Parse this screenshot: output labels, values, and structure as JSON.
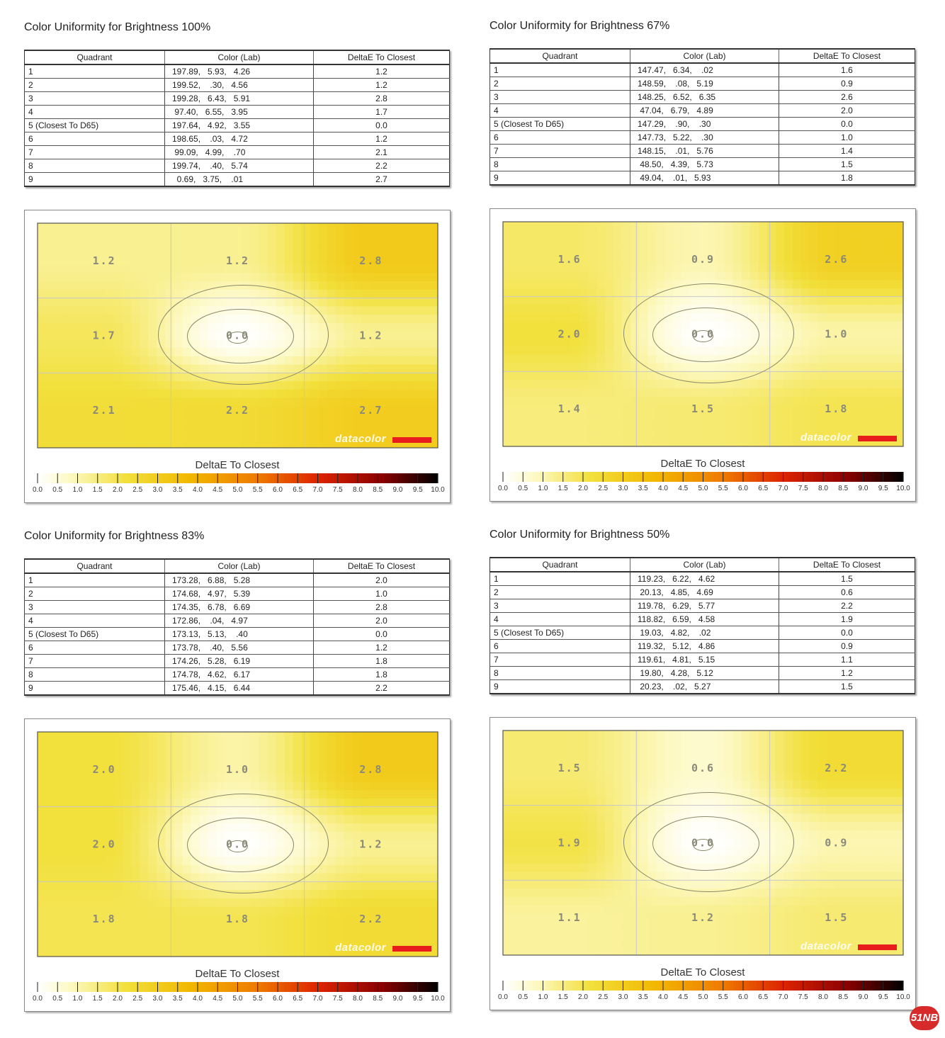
{
  "chart_data": [
    {
      "type": "table",
      "title": "Color Uniformity for Brightness 100%",
      "columns": [
        "Quadrant",
        "Color (Lab)",
        "DeltaE To Closest"
      ],
      "rows": [
        [
          "1",
          "197.89,   5.93,   4.26",
          "1.2"
        ],
        [
          "2",
          "199.52,    .30,   4.56",
          "1.2"
        ],
        [
          "3",
          "199.28,   6.43,   5.91",
          "2.8"
        ],
        [
          "4",
          " 97.40,   6.55,   3.95",
          "1.7"
        ],
        [
          "5 (Closest To D65)",
          "197.64,   4.92,   3.55",
          "0.0"
        ],
        [
          "6",
          "198.65,    .03,   4.72",
          "1.2"
        ],
        [
          "7",
          " 99.09,   4.99,    .70",
          "2.1"
        ],
        [
          "8",
          "199.74,    .40,   5.74",
          "2.2"
        ],
        [
          "9",
          "  0.69,   3.75,    .01",
          "2.7"
        ]
      ],
      "grid_values": [
        1.2,
        1.2,
        2.8,
        1.7,
        0.0,
        1.2,
        2.1,
        2.2,
        2.7
      ],
      "grid_labels": [
        "1.2",
        "1.2",
        "2.8",
        "1.7",
        "0.0",
        "1.2",
        "2.1",
        "2.2",
        "2.7"
      ],
      "heatmap_label": "DeltaE To Closest",
      "scale_ticks": [
        "0.0",
        "0.5",
        "1.0",
        "1.5",
        "2.0",
        "2.5",
        "3.0",
        "3.5",
        "4.0",
        "4.5",
        "5.0",
        "5.5",
        "6.0",
        "6.5",
        "7.0",
        "7.5",
        "8.0",
        "8.5",
        "9.0",
        "9.5",
        "10.0"
      ],
      "scale_range": [
        0,
        10
      ],
      "logo_text": "datacolor"
    },
    {
      "type": "table",
      "title": "Color Uniformity for Brightness 67%",
      "columns": [
        "Quadrant",
        "Color (Lab)",
        "DeltaE To Closest"
      ],
      "rows": [
        [
          "1",
          "147.47,   6.34,    .02",
          "1.6"
        ],
        [
          "2",
          "148.59,    .08,   5.19",
          "0.9"
        ],
        [
          "3",
          "148.25,   6.52,   6.35",
          "2.6"
        ],
        [
          "4",
          " 47.04,   6.79,   4.89",
          "2.0"
        ],
        [
          "5 (Closest To D65)",
          "147.29,    .90,    .30",
          "0.0"
        ],
        [
          "6",
          "147.73,   5.22,    .30",
          "1.0"
        ],
        [
          "7",
          "148.15,    .01,   5.76",
          "1.4"
        ],
        [
          "8",
          " 48.50,   4.39,   5.73",
          "1.5"
        ],
        [
          "9",
          " 49.04,    .01,   5.93",
          "1.8"
        ]
      ],
      "grid_values": [
        1.6,
        0.9,
        2.6,
        2.0,
        0.0,
        1.0,
        1.4,
        1.5,
        1.8
      ],
      "grid_labels": [
        "1.6",
        "0.9",
        "2.6",
        "2.0",
        "0.0",
        "1.0",
        "1.4",
        "1.5",
        "1.8"
      ],
      "heatmap_label": "DeltaE To Closest",
      "scale_ticks": [
        "0.0",
        "0.5",
        "1.0",
        "1.5",
        "2.0",
        "2.5",
        "3.0",
        "3.5",
        "4.0",
        "4.5",
        "5.0",
        "5.5",
        "6.0",
        "6.5",
        "7.0",
        "7.5",
        "8.0",
        "8.5",
        "9.0",
        "9.5",
        "10.0"
      ],
      "scale_range": [
        0,
        10
      ],
      "logo_text": "datacolor"
    },
    {
      "type": "table",
      "title": "Color Uniformity for Brightness 83%",
      "columns": [
        "Quadrant",
        "Color (Lab)",
        "DeltaE To Closest"
      ],
      "rows": [
        [
          "1",
          "173.28,   6.88,   5.28",
          "2.0"
        ],
        [
          "2",
          "174.68,   4.97,   5.39",
          "1.0"
        ],
        [
          "3",
          "174.35,   6.78,   6.69",
          "2.8"
        ],
        [
          "4",
          "172.86,    .04,   4.97",
          "2.0"
        ],
        [
          "5 (Closest To D65)",
          "173.13,   5.13,    .40",
          "0.0"
        ],
        [
          "6",
          "173.78,    .40,   5.56",
          "1.2"
        ],
        [
          "7",
          "174.26,   5.28,   6.19",
          "1.8"
        ],
        [
          "8",
          "174.78,   4.62,   6.17",
          "1.8"
        ],
        [
          "9",
          "175.46,   4.15,   6.44",
          "2.2"
        ]
      ],
      "grid_values": [
        2.0,
        1.0,
        2.8,
        2.0,
        0.0,
        1.2,
        1.8,
        1.8,
        2.2
      ],
      "grid_labels": [
        "2.0",
        "1.0",
        "2.8",
        "2.0",
        "0.0",
        "1.2",
        "1.8",
        "1.8",
        "2.2"
      ],
      "heatmap_label": "DeltaE To Closest",
      "scale_ticks": [
        "0.0",
        "0.5",
        "1.0",
        "1.5",
        "2.0",
        "2.5",
        "3.0",
        "3.5",
        "4.0",
        "4.5",
        "5.0",
        "5.5",
        "6.0",
        "6.5",
        "7.0",
        "7.5",
        "8.0",
        "8.5",
        "9.0",
        "9.5",
        "10.0"
      ],
      "scale_range": [
        0,
        10
      ],
      "logo_text": "datacolor"
    },
    {
      "type": "table",
      "title": "Color Uniformity for Brightness 50%",
      "columns": [
        "Quadrant",
        "Color (Lab)",
        "DeltaE To Closest"
      ],
      "rows": [
        [
          "1",
          "119.23,   6.22,   4.62",
          "1.5"
        ],
        [
          "2",
          " 20.13,   4.85,   4.69",
          "0.6"
        ],
        [
          "3",
          "119.78,   6.29,   5.77",
          "2.2"
        ],
        [
          "4",
          "118.82,   6.59,   4.58",
          "1.9"
        ],
        [
          "5 (Closest To D65)",
          " 19.03,   4.82,    .02",
          "0.0"
        ],
        [
          "6",
          "119.32,   5.12,   4.86",
          "0.9"
        ],
        [
          "7",
          "119.61,   4.81,   5.15",
          "1.1"
        ],
        [
          "8",
          " 19.80,   4.28,   5.12",
          "1.2"
        ],
        [
          "9",
          " 20.23,    .02,   5.27",
          "1.5"
        ]
      ],
      "grid_values": [
        1.5,
        0.6,
        2.2,
        1.9,
        0.0,
        0.9,
        1.1,
        1.2,
        1.5
      ],
      "grid_labels": [
        "1.5",
        "0.6",
        "2.2",
        "1.9",
        "0.0",
        "0.9",
        "1.1",
        "1.2",
        "1.5"
      ],
      "heatmap_label": "DeltaE To Closest",
      "scale_ticks": [
        "0.0",
        "0.5",
        "1.0",
        "1.5",
        "2.0",
        "2.5",
        "3.0",
        "3.5",
        "4.0",
        "4.5",
        "5.0",
        "5.5",
        "6.0",
        "6.5",
        "7.0",
        "7.5",
        "8.0",
        "8.5",
        "9.0",
        "9.5",
        "10.0"
      ],
      "scale_range": [
        0,
        10
      ],
      "logo_text": "datacolor"
    }
  ],
  "colors": {
    "scale_stops": [
      "#ffffff",
      "#fdf9c4",
      "#f2e03c",
      "#f2b800",
      "#ee7a00",
      "#dd2400",
      "#8a0000",
      "#000000"
    ],
    "logo_bar": "#e81c1c",
    "watermark": "#d72b2b"
  },
  "watermark_text": "51NB"
}
